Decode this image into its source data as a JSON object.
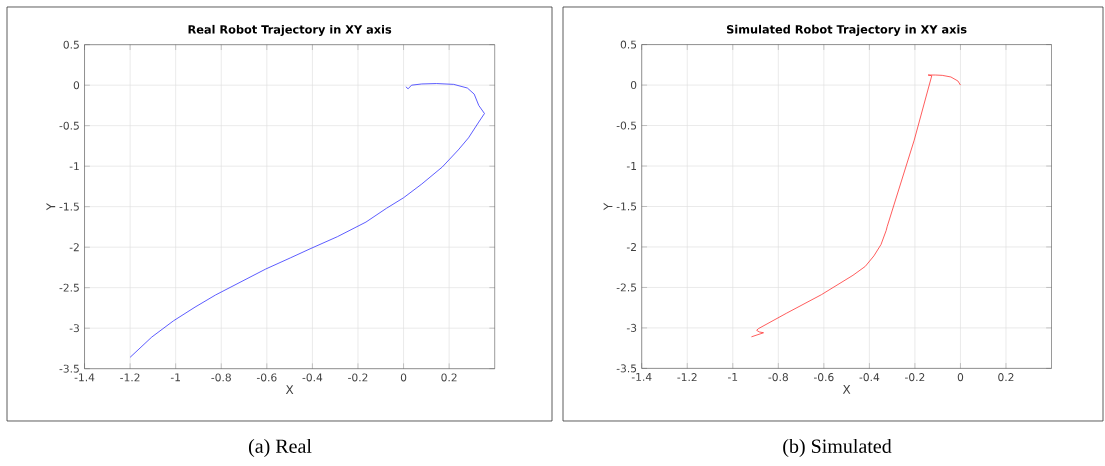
{
  "chart_data": [
    {
      "type": "line",
      "title": "Real Robot Trajectory in XY axis",
      "xlabel": "X",
      "ylabel": "Y",
      "color": "#3333ff",
      "grid": true,
      "x": [
        0.01,
        0.02,
        0.035,
        0.08,
        0.145,
        0.22,
        0.28,
        0.31,
        0.33,
        0.355,
        0.33,
        0.285,
        0.24,
        0.17,
        0.08,
        0.0,
        -0.075,
        -0.165,
        -0.29,
        -0.41,
        -0.495,
        -0.605,
        -0.715,
        -0.825,
        -0.915,
        -1.01,
        -1.105,
        -1.2
      ],
      "values": [
        -0.02,
        -0.045,
        0.0,
        0.015,
        0.02,
        0.01,
        -0.035,
        -0.11,
        -0.25,
        -0.35,
        -0.455,
        -0.65,
        -0.8,
        -1.01,
        -1.22,
        -1.39,
        -1.52,
        -1.69,
        -1.87,
        -2.02,
        -2.13,
        -2.27,
        -2.43,
        -2.59,
        -2.74,
        -2.91,
        -3.11,
        -3.36
      ],
      "xlim": [
        -1.4,
        0.4
      ],
      "ylim": [
        -3.5,
        0.5
      ],
      "xticks": [
        -1.4,
        -1.2,
        -1,
        -0.8,
        -0.6,
        -0.4,
        -0.2,
        0,
        0.2
      ],
      "yticks": [
        -3.5,
        -3,
        -2.5,
        -2,
        -1.5,
        -1,
        -0.5,
        0,
        0.5
      ],
      "annotations": [
        "(a) Real"
      ]
    },
    {
      "type": "line",
      "title": "Simulated Robot Trajectory in XY axis",
      "xlabel": "X",
      "ylabel": "Y",
      "color": "#ff3333",
      "grid": true,
      "x": [
        0.0,
        -0.011,
        -0.042,
        -0.08,
        -0.11,
        -0.142,
        -0.126,
        -0.203,
        -0.322,
        -0.326,
        -0.349,
        -0.38,
        -0.418,
        -0.472,
        -0.611,
        -0.765,
        -0.888,
        -0.895,
        -0.883,
        -0.865,
        -0.918
      ],
      "values": [
        0.0,
        0.05,
        0.1,
        0.12,
        0.124,
        0.124,
        0.115,
        -0.68,
        -1.75,
        -1.795,
        -1.97,
        -2.11,
        -2.24,
        -2.35,
        -2.59,
        -2.82,
        -3.01,
        -3.03,
        -3.05,
        -3.06,
        -3.11
      ],
      "xlim": [
        -1.4,
        0.4
      ],
      "ylim": [
        -3.5,
        0.5
      ],
      "xticks": [
        -1.4,
        -1.2,
        -1,
        -0.8,
        -0.6,
        -0.4,
        -0.2,
        0,
        0.2
      ],
      "yticks": [
        -3.5,
        -3,
        -2.5,
        -2,
        -1.5,
        -1,
        -0.5,
        0,
        0.5
      ],
      "annotations": [
        "(b) Simulated"
      ]
    }
  ]
}
